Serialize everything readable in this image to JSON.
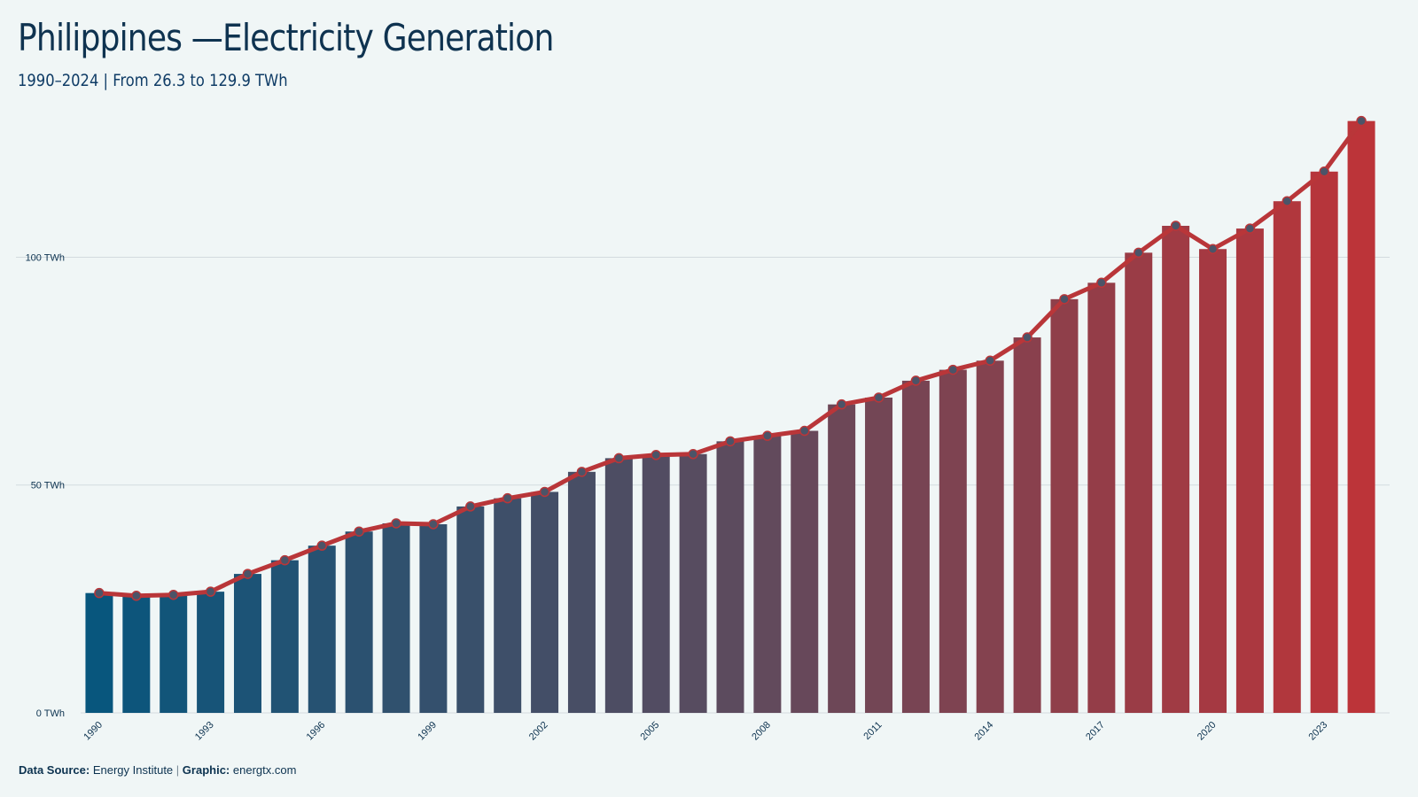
{
  "header": {
    "title": "Philippines —Electricity Generation",
    "subtitle": "1990–2024 | From 26.3 to 129.9 TWh"
  },
  "footer": {
    "source_label": "Data Source:",
    "source_value": "Energy Institute",
    "separator": "|",
    "graphic_label": "Graphic:",
    "graphic_value": "energtx.com"
  },
  "colors": {
    "start": "#08567d",
    "mid": "#5c4b5e",
    "end": "#bc3439",
    "line": "#b93639",
    "marker_fill": "#4b5468",
    "grid": "#d3dbdf"
  },
  "chart_data": {
    "type": "bar",
    "x": [
      1990,
      1991,
      1992,
      1993,
      1994,
      1995,
      1996,
      1997,
      1998,
      1999,
      2000,
      2001,
      2002,
      2003,
      2004,
      2005,
      2006,
      2007,
      2008,
      2009,
      2010,
      2011,
      2012,
      2013,
      2014,
      2015,
      2016,
      2017,
      2018,
      2019,
      2020,
      2021,
      2022,
      2023,
      2024
    ],
    "values": [
      26.3,
      25.7,
      25.9,
      26.6,
      30.5,
      33.5,
      36.7,
      39.8,
      41.6,
      41.4,
      45.3,
      47.1,
      48.5,
      52.9,
      55.9,
      56.6,
      56.8,
      59.6,
      60.8,
      61.9,
      67.7,
      69.2,
      72.9,
      75.3,
      77.3,
      82.4,
      90.8,
      94.4,
      101.0,
      106.9,
      101.8,
      106.3,
      112.3,
      118.8,
      129.9
    ],
    "series": [
      {
        "name": "",
        "type": "bar"
      },
      {
        "name": "",
        "type": "line"
      }
    ],
    "title": "Philippines —Electricity Generation",
    "subtitle": "1990–2024 | From 26.3 to 129.9 TWh",
    "xlabel": "",
    "ylabel": "",
    "ylim": [
      0,
      131
    ],
    "yticks": [
      0,
      50,
      100
    ],
    "ytick_labels": [
      "0 TWh",
      "50 TWh",
      "100 TWh"
    ],
    "xticks": [
      1990,
      1993,
      1996,
      1999,
      2002,
      2005,
      2008,
      2011,
      2014,
      2017,
      2020,
      2023
    ],
    "grid": true,
    "legend": "none"
  }
}
